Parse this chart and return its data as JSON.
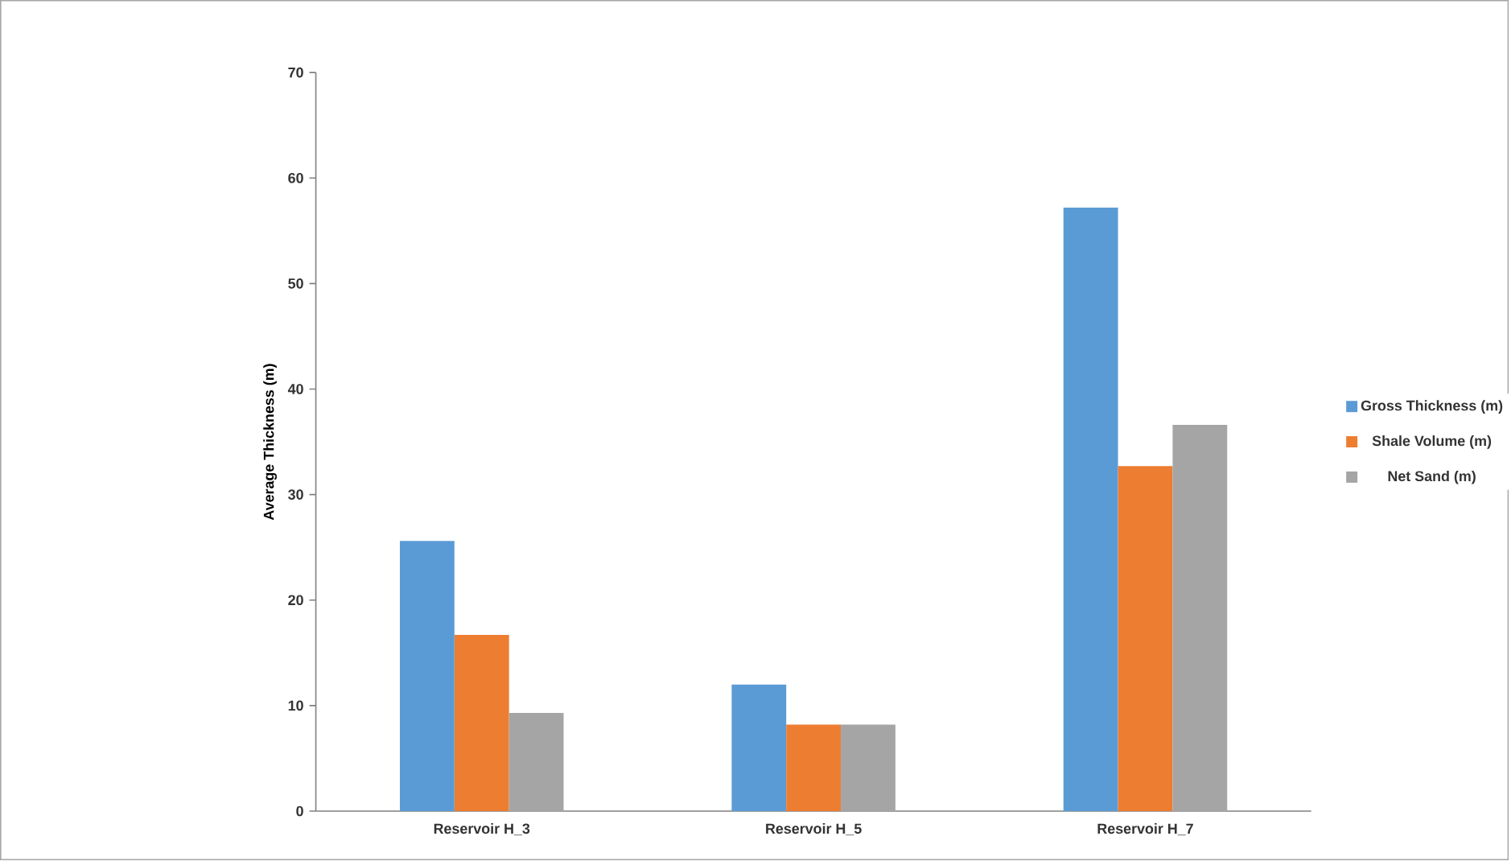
{
  "chart_data": {
    "type": "bar",
    "ylabel": "Average Thickness (m)",
    "categories": [
      "Reservoir H_3",
      "Reservoir H_5",
      "Reservoir H_7"
    ],
    "series": [
      {
        "name": "Gross Thickness (m)",
        "color": "#5b9bd5",
        "values": [
          25.6,
          12.0,
          57.2
        ]
      },
      {
        "name": "Shale Volume (m)",
        "color": "#ed7d31",
        "values": [
          16.7,
          8.2,
          32.7
        ]
      },
      {
        "name": "Net Sand (m)",
        "color": "#a5a5a5",
        "values": [
          9.3,
          8.2,
          36.6
        ]
      }
    ],
    "ylim": [
      0,
      70
    ],
    "yticks": [
      0,
      10,
      20,
      30,
      40,
      50,
      60,
      70
    ],
    "grid": false,
    "legend": "right"
  }
}
